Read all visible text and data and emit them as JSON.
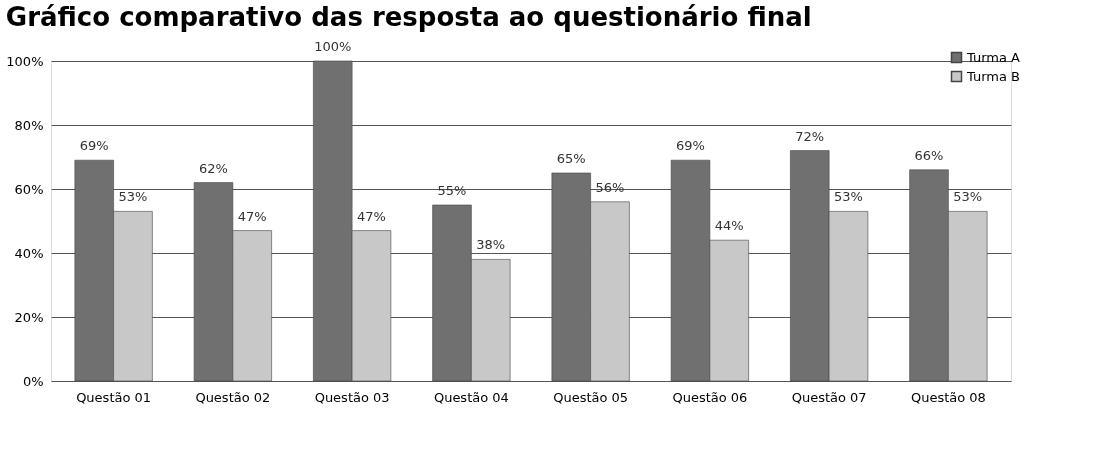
{
  "chart_data": {
    "type": "bar",
    "title": "Gráfico comparativo das resposta ao questionário final",
    "categories": [
      "Questão 01",
      "Questão 02",
      "Questão 03",
      "Questão 04",
      "Questão 05",
      "Questão 06",
      "Questão 07",
      "Questão 08"
    ],
    "series": [
      {
        "name": "Turma A",
        "color": "#707070",
        "values": [
          69,
          62,
          100,
          55,
          65,
          69,
          72,
          66
        ],
        "value_labels": [
          "69%",
          "62%",
          "100%",
          "55%",
          "65%",
          "69%",
          "72%",
          "66%"
        ]
      },
      {
        "name": "Turma B",
        "color": "#c8c8c8",
        "values": [
          53,
          47,
          47,
          38,
          56,
          44,
          53,
          53
        ],
        "value_labels": [
          "53%",
          "47%",
          "47%",
          "38%",
          "56%",
          "44%",
          "53%",
          "53%"
        ]
      }
    ],
    "ylim": [
      0,
      100
    ],
    "yticks": [
      {
        "value": 0,
        "label": "0%"
      },
      {
        "value": 20,
        "label": "20%"
      },
      {
        "value": 40,
        "label": "40%"
      },
      {
        "value": 60,
        "label": "60%"
      },
      {
        "value": 80,
        "label": "80%"
      },
      {
        "value": 100,
        "label": "100%"
      }
    ],
    "grid": "y",
    "legend": "top right"
  }
}
